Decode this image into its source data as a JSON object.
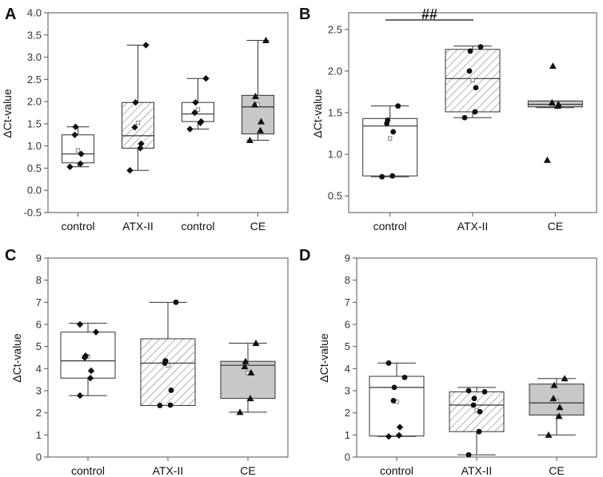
{
  "colors": {
    "axis": "#555555",
    "box_line": "#333333",
    "gray_fill": "#c8c8c8",
    "hatch": "#777777",
    "marker": "#111111"
  },
  "chart_data": [
    {
      "type": "box",
      "panel_label": "A",
      "ylabel": "ΔCt-value",
      "ylim": [
        -0.5,
        4.0
      ],
      "yticks": [
        "-0.5",
        "0.0",
        "0.5",
        "1.0",
        "1.5",
        "2.0",
        "2.5",
        "3.0",
        "3.5",
        "4.0"
      ],
      "ytick_values": [
        -0.5,
        0.0,
        0.5,
        1.0,
        1.5,
        2.0,
        2.5,
        3.0,
        3.5,
        4.0
      ],
      "annotation": "",
      "groups": [
        {
          "label": "control",
          "fill": "white",
          "marker": "diamond",
          "min": 0.53,
          "q1": 0.62,
          "median": 0.82,
          "q3": 1.25,
          "max": 1.43,
          "mean": 0.9,
          "points": [
            0.53,
            0.6,
            0.82,
            1.25,
            1.43
          ]
        },
        {
          "label": "ATX-II",
          "fill": "hatch",
          "marker": "diamond",
          "min": 0.45,
          "q1": 0.95,
          "median": 1.23,
          "q3": 1.98,
          "max": 3.27,
          "mean": 1.52,
          "points": [
            0.45,
            0.95,
            1.05,
            1.42,
            1.98,
            3.27
          ]
        },
        {
          "label": "control",
          "fill": "white",
          "marker": "diamond",
          "min": 1.38,
          "q1": 1.55,
          "median": 1.72,
          "q3": 1.98,
          "max": 2.52,
          "mean": 1.82,
          "points": [
            1.38,
            1.52,
            1.55,
            1.75,
            1.98,
            2.52
          ]
        },
        {
          "label": "CE",
          "fill": "gray",
          "marker": "triangle",
          "min": 1.13,
          "q1": 1.27,
          "median": 1.88,
          "q3": 2.14,
          "max": 3.38,
          "mean": 1.93,
          "points": [
            1.13,
            1.35,
            1.55,
            1.93,
            2.12,
            3.38
          ]
        }
      ]
    },
    {
      "type": "box",
      "panel_label": "B",
      "ylabel": "ΔCt-value",
      "ylim": [
        0.3,
        2.7
      ],
      "yticks": [
        "0.5",
        "1.0",
        "1.5",
        "2.0",
        "2.5"
      ],
      "ytick_values": [
        0.5,
        1.0,
        1.5,
        2.0,
        2.5
      ],
      "annotation": "##",
      "groups": [
        {
          "label": "control",
          "fill": "white",
          "marker": "circle",
          "min": 0.73,
          "q1": 0.74,
          "median": 1.34,
          "q3": 1.43,
          "max": 1.58,
          "mean": 1.19,
          "points": [
            0.73,
            0.74,
            1.27,
            1.37,
            1.41,
            1.58
          ]
        },
        {
          "label": "ATX-II",
          "fill": "hatch",
          "marker": "circle",
          "min": 1.44,
          "q1": 1.51,
          "median": 1.91,
          "q3": 2.26,
          "max": 2.3,
          "mean": 1.89,
          "points": [
            1.44,
            1.51,
            1.8,
            2.0,
            2.24,
            2.29
          ]
        },
        {
          "label": "CE",
          "fill": "gray",
          "marker": "triangle",
          "min": 1.56,
          "q1": 1.57,
          "median": 1.6,
          "q3": 1.64,
          "max": 1.64,
          "mean": 1.6,
          "points": [
            0.93,
            1.58,
            1.6,
            1.62,
            2.06
          ]
        }
      ]
    },
    {
      "type": "box",
      "panel_label": "C",
      "ylabel": "ΔCt-value",
      "ylim": [
        0,
        9
      ],
      "yticks": [
        "0",
        "1",
        "2",
        "3",
        "4",
        "5",
        "6",
        "7",
        "8",
        "9"
      ],
      "ytick_values": [
        0,
        1,
        2,
        3,
        4,
        5,
        6,
        7,
        8,
        9
      ],
      "annotation": "",
      "groups": [
        {
          "label": "control",
          "fill": "white",
          "marker": "diamond",
          "min": 2.78,
          "q1": 3.57,
          "median": 4.35,
          "q3": 5.65,
          "max": 6.05,
          "mean": 4.55,
          "points": [
            2.78,
            3.57,
            3.9,
            4.5,
            4.58,
            5.65,
            6.0
          ]
        },
        {
          "label": "ATX-II",
          "fill": "hatch",
          "marker": "circle",
          "min": 2.33,
          "q1": 2.33,
          "median": 4.25,
          "q3": 5.35,
          "max": 7.0,
          "mean": 4.15,
          "points": [
            2.33,
            2.35,
            3.02,
            4.25,
            4.35,
            7.0
          ]
        },
        {
          "label": "CE",
          "fill": "gray",
          "marker": "triangle",
          "min": 2.03,
          "q1": 2.65,
          "median": 4.15,
          "q3": 4.33,
          "max": 5.15,
          "mean": 3.8,
          "points": [
            2.03,
            2.65,
            3.82,
            4.1,
            4.33,
            5.15
          ]
        }
      ]
    },
    {
      "type": "box",
      "panel_label": "D",
      "ylabel": "ΔCt-value",
      "ylim": [
        0,
        9
      ],
      "yticks": [
        "0",
        "1",
        "2",
        "3",
        "4",
        "5",
        "6",
        "7",
        "8",
        "9"
      ],
      "ytick_values": [
        0,
        1,
        2,
        3,
        4,
        5,
        6,
        7,
        8,
        9
      ],
      "annotation": "",
      "groups": [
        {
          "label": "control",
          "fill": "white",
          "marker": "mixed",
          "min": 0.93,
          "q1": 0.95,
          "median": 3.15,
          "q3": 3.65,
          "max": 4.25,
          "mean": 2.5,
          "points": [
            0.93,
            0.98,
            1.35,
            2.55,
            3.15,
            3.6,
            4.25
          ]
        },
        {
          "label": "ATX-II",
          "fill": "hatch",
          "marker": "circle",
          "min": 0.1,
          "q1": 1.15,
          "median": 2.35,
          "q3": 2.95,
          "max": 3.15,
          "mean": 2.1,
          "points": [
            0.1,
            1.15,
            2.05,
            2.35,
            2.65,
            2.95,
            3.0
          ]
        },
        {
          "label": "CE",
          "fill": "gray",
          "marker": "triangle",
          "min": 1.0,
          "q1": 1.9,
          "median": 2.45,
          "q3": 3.3,
          "max": 3.55,
          "mean": 2.55,
          "points": [
            1.0,
            1.85,
            2.25,
            2.65,
            3.25,
            3.55
          ]
        }
      ]
    }
  ]
}
